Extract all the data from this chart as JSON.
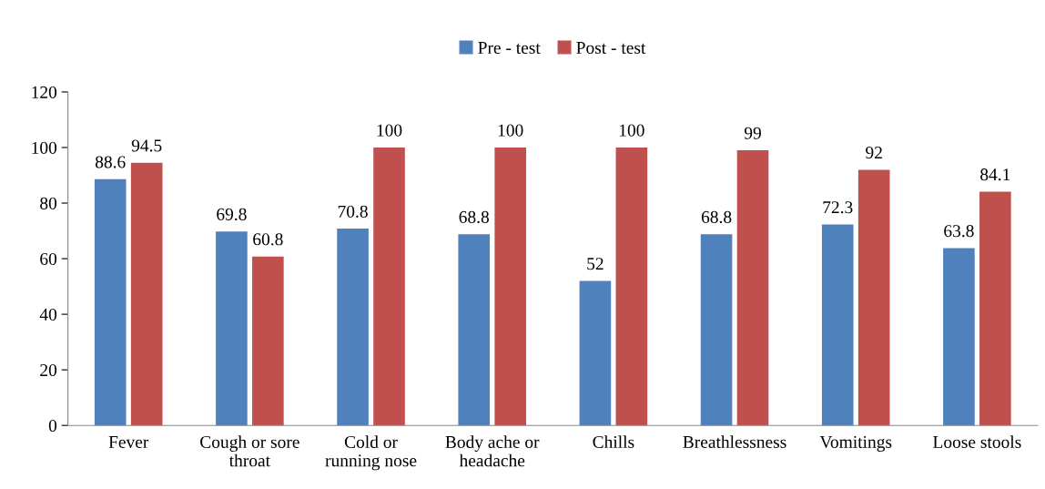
{
  "chart_data": {
    "type": "bar",
    "categories": [
      "Fever",
      "Cough or sore\nthroat",
      "Cold or\nrunning nose",
      "Body ache or\nheadache",
      "Chills",
      "Breathlessness",
      "Vomitings",
      "Loose stools"
    ],
    "series": [
      {
        "name": "Pre - test",
        "color": "#4f81bd",
        "values": [
          88.6,
          69.8,
          70.8,
          68.8,
          52,
          68.8,
          72.3,
          63.8
        ]
      },
      {
        "name": "Post - test",
        "color": "#c0504d",
        "values": [
          94.5,
          60.8,
          100,
          100,
          100,
          99,
          92,
          84.1
        ]
      }
    ],
    "ylim": [
      0,
      120
    ],
    "yticks": [
      0,
      20,
      40,
      60,
      80,
      100,
      120
    ],
    "data_labels": true,
    "legend": "top",
    "grid": false
  }
}
